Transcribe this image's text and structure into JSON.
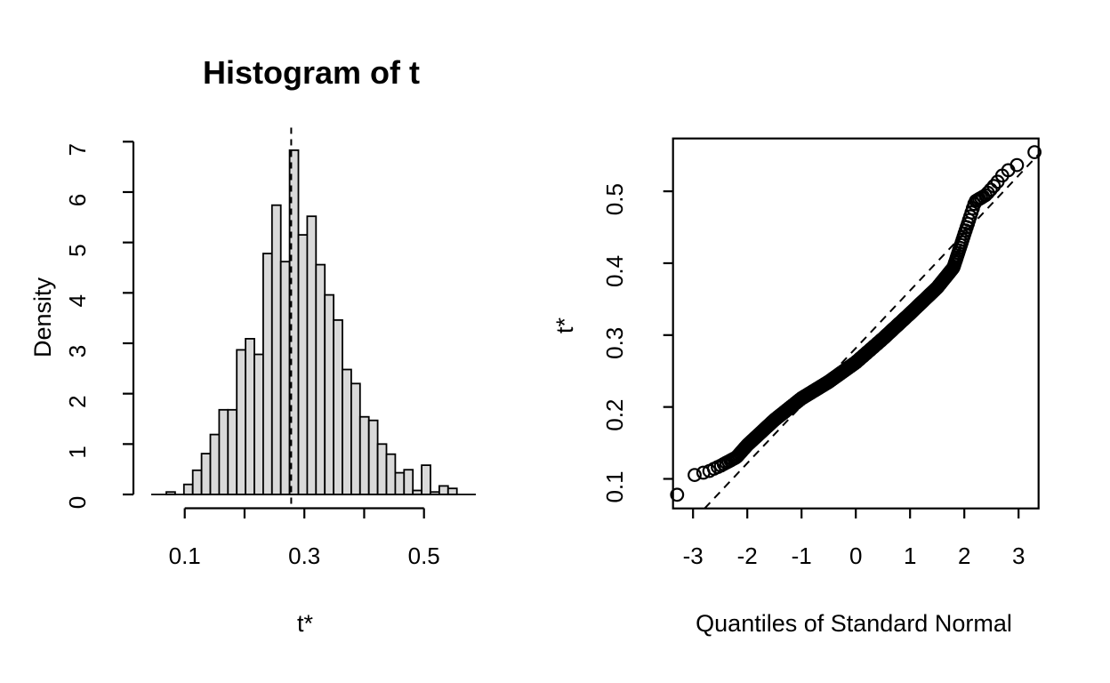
{
  "page": {
    "background": "#ffffff",
    "foreground": "#000000",
    "bar_fill": "#d9d9d9"
  },
  "chart_data": [
    {
      "type": "bar",
      "subtype": "histogram-density",
      "title": "Histogram of t",
      "xlabel": "t*",
      "ylabel": "Density",
      "bins": {
        "start": 0.0692,
        "width": 0.01472
      },
      "densities": [
        0.05,
        0,
        0.2,
        0.48,
        0.81,
        1.19,
        1.68,
        1.68,
        2.87,
        3.09,
        2.78,
        4.78,
        5.74,
        4.62,
        6.83,
        5.15,
        5.52,
        4.56,
        3.96,
        3.46,
        2.48,
        2.2,
        1.54,
        1.47,
        1.0,
        0.8,
        0.43,
        0.49,
        0.08,
        0.58,
        0.05,
        0.17,
        0.12
      ],
      "observed_line": {
        "x": 0.278,
        "style": "dashed"
      },
      "x_ticks": [
        0.1,
        0.2,
        0.3,
        0.4,
        0.5
      ],
      "x_tick_labels": [
        "0.1",
        "",
        "0.3",
        "",
        "0.5"
      ],
      "y_ticks": [
        0,
        1,
        2,
        3,
        4,
        5,
        6,
        7
      ],
      "y_tick_labels": [
        "0",
        "1",
        "2",
        "3",
        "4",
        "5",
        "6",
        "7"
      ],
      "ylim": [
        0,
        7
      ],
      "grid": false
    },
    {
      "type": "scatter",
      "subtype": "qqnorm",
      "title": "",
      "xlabel": "Quantiles of Standard Normal",
      "ylabel": "t*",
      "n_points": 1000,
      "x_ticks": [
        -3,
        -2,
        -1,
        0,
        1,
        2,
        3
      ],
      "x_tick_labels": [
        "-3",
        "-2",
        "-1",
        "0",
        "1",
        "2",
        "3"
      ],
      "y_ticks": [
        0.1,
        0.2,
        0.3,
        0.4,
        0.5
      ],
      "y_tick_labels": [
        "0.1",
        "0.2",
        "0.3",
        "0.4",
        "0.5"
      ],
      "xlim": [
        -3.37,
        3.37
      ],
      "ylim": [
        0.059,
        0.5735
      ],
      "marker": {
        "shape": "open-circle",
        "radius_px": 6.8
      },
      "reference_line": {
        "intercept": 0.282,
        "slope": 0.08,
        "style": "dashed"
      },
      "quantile_curve": [
        [
          -3.29,
          0.078
        ],
        [
          -3.05,
          0.104
        ],
        [
          -2.88,
          0.107
        ],
        [
          -2.7,
          0.111
        ],
        [
          -2.5,
          0.118
        ],
        [
          -2.2,
          0.13
        ],
        [
          -2.0,
          0.147
        ],
        [
          -1.5,
          0.182
        ],
        [
          -1.0,
          0.212
        ],
        [
          -0.5,
          0.235
        ],
        [
          0.0,
          0.262
        ],
        [
          0.5,
          0.295
        ],
        [
          1.0,
          0.33
        ],
        [
          1.5,
          0.366
        ],
        [
          1.8,
          0.394
        ],
        [
          2.0,
          0.44
        ],
        [
          2.2,
          0.486
        ],
        [
          2.4,
          0.495
        ],
        [
          2.6,
          0.512
        ],
        [
          2.75,
          0.527
        ],
        [
          2.9,
          0.533
        ],
        [
          3.0,
          0.538
        ],
        [
          3.1,
          0.542
        ],
        [
          3.29,
          0.5545
        ]
      ],
      "grid": false
    }
  ]
}
